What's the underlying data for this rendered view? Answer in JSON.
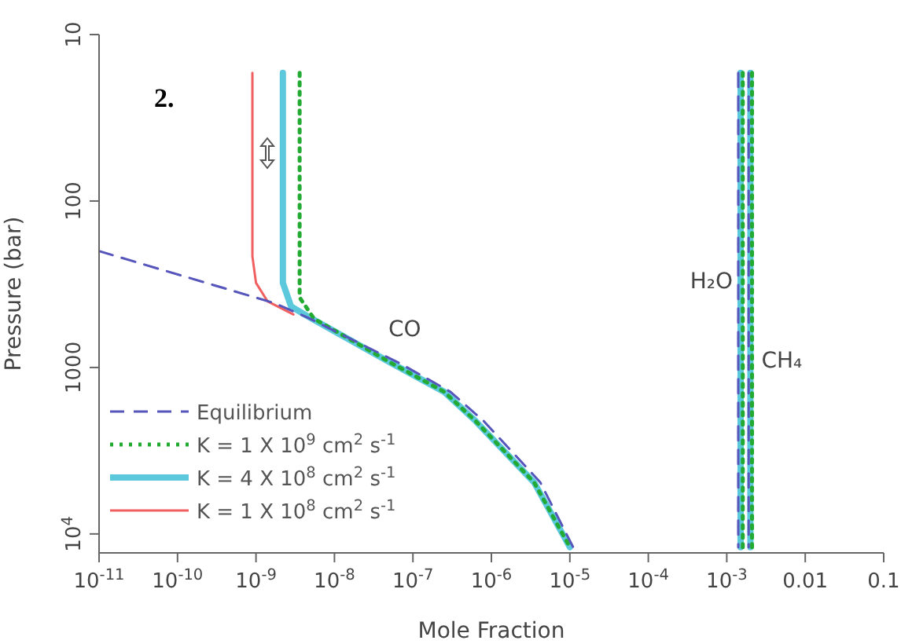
{
  "chart_data": {
    "type": "line",
    "xlabel": "Mole Fraction",
    "ylabel": "Pressure (bar)",
    "log": "xy",
    "xlim": [
      1e-11,
      0.1
    ],
    "ylim": [
      13000,
      10
    ],
    "xticks": [
      {
        "value": 1e-11,
        "label": "10$^{-11}$"
      },
      {
        "value": 1e-10,
        "label": "10$^{-10}$"
      },
      {
        "value": 1e-09,
        "label": "10$^{-9}$"
      },
      {
        "value": 1e-08,
        "label": "10$^{-8}$"
      },
      {
        "value": 1e-07,
        "label": "10$^{-7}$"
      },
      {
        "value": 1e-06,
        "label": "10$^{-6}$"
      },
      {
        "value": 1e-05,
        "label": "10$^{-5}$"
      },
      {
        "value": 0.0001,
        "label": "10$^{-4}$"
      },
      {
        "value": 0.001,
        "label": "10$^{-3}$"
      },
      0.01,
      0.1
    ],
    "yticks": [
      10,
      100,
      1000,
      {
        "value": 10000,
        "label": "10$^{4}$"
      }
    ],
    "legend": "bottom left",
    "annotations": [
      "2.",
      "CO",
      {
        "text": "H₂O",
        "x": 0.0015,
        "y": 300
      },
      {
        "text": "CH₄",
        "x": 0.002,
        "y": 900
      }
    ],
    "series": [
      {
        "name": "Equilibrium",
        "color": "#5555bb",
        "line_style": "dashed",
        "x": [
          1e-11,
          1.7e-09,
          4.5e-09,
          7e-08,
          3e-07,
          8e-07,
          4.2e-06,
          1.1e-05,
          null,
          0.0014,
          0.0014,
          null,
          0.0019,
          0.0019
        ],
        "values": [
          200,
          410,
          500,
          950,
          1400,
          2100,
          4900,
          12000,
          null,
          17,
          12000,
          null,
          17,
          12000
        ]
      },
      {
        "name": "K = 1 X 10$^{9}$ cm$^{2}$ s$^{-1}$",
        "color": "#22aa33",
        "line_style": "dotted",
        "x": [
          3.6e-09,
          3.6e-09,
          5.5e-09,
          5.5e-08,
          2.5e-07,
          6.3e-07,
          3.5e-06,
          1e-05,
          null,
          0.0016,
          0.0016,
          null,
          0.0021,
          0.0021
        ],
        "values": [
          17,
          380,
          510,
          950,
          1400,
          2100,
          4900,
          12000,
          null,
          17,
          12000,
          null,
          17,
          12000
        ]
      },
      {
        "name": "K = 4 X 10$^{8}$ cm$^{2}$ s$^{-1}$",
        "color": "#5bc8dc",
        "line_style": "solid",
        "x": [
          2.2e-09,
          2.2e-09,
          2.8e-09,
          4.8e-09,
          5.5e-08,
          2.5e-07,
          6.3e-07,
          3.5e-06,
          1e-05,
          null,
          0.0015,
          0.0015,
          null,
          0.002,
          0.002
        ],
        "values": [
          17,
          310,
          430,
          500,
          950,
          1400,
          2100,
          4900,
          12000,
          null,
          17,
          12000,
          null,
          17,
          12000
        ]
      },
      {
        "name": "K = 1 X 10$^{8}$ cm$^{2}$ s$^{-1}$",
        "color": "#f06060",
        "line_style": "solid",
        "x": [
          9e-10,
          9e-10,
          1e-09,
          1.4e-09,
          3e-09
        ],
        "values": [
          17,
          215,
          310,
          400,
          480
        ]
      }
    ]
  }
}
